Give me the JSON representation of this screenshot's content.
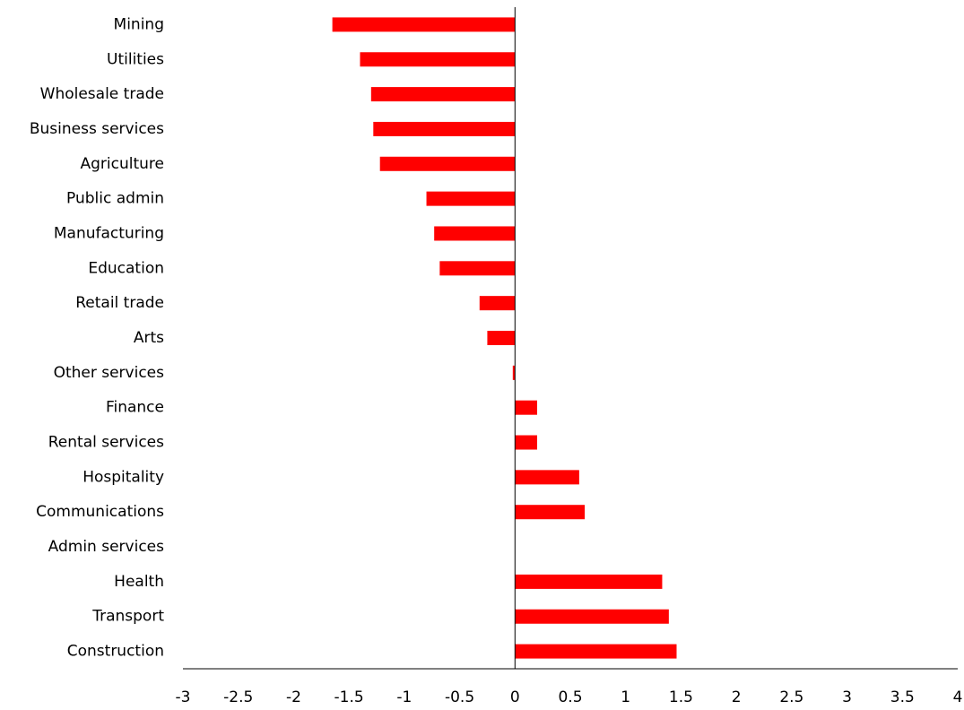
{
  "chart_data": {
    "type": "barh",
    "categories": [
      "Mining",
      "Utilities",
      "Wholesale trade",
      "Business services",
      "Agriculture",
      "Public admin",
      "Manufacturing",
      "Education",
      "Retail trade",
      "Arts",
      "Other services",
      "Finance",
      "Rental services",
      "Hospitality",
      "Communications",
      "Admin services",
      "Health",
      "Transport",
      "Construction"
    ],
    "values": [
      -1.65,
      -1.4,
      -1.3,
      -1.28,
      -1.22,
      -0.8,
      -0.73,
      -0.68,
      -0.32,
      -0.25,
      -0.02,
      0.2,
      0.2,
      0.58,
      0.63,
      0,
      1.33,
      1.39,
      1.46
    ],
    "color": "#ff0000",
    "xlim": [
      -3,
      4
    ],
    "xticks": [
      -3,
      -2.5,
      -2,
      -1.5,
      -1,
      -0.5,
      0,
      0.5,
      1,
      1.5,
      2,
      2.5,
      3,
      3.5,
      4
    ]
  }
}
